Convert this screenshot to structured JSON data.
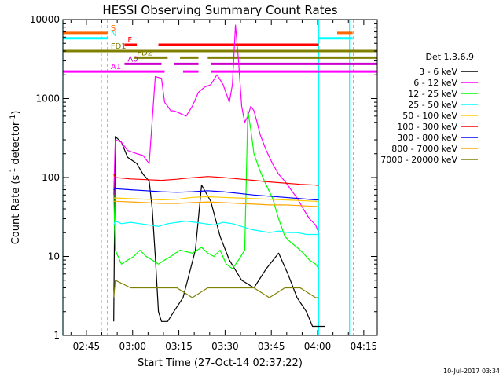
{
  "chart_data": {
    "type": "line",
    "title": "HESSI Observing Summary Count Rates",
    "xlabel": "Start Time (27-Oct-14 02:37:22)",
    "ylabel": "Count Rate (s^-1 detector^-1)",
    "ylabel_parts": {
      "main": "Count Rate (s",
      "sup1": "-1",
      "mid": " detector",
      "sup2": "-1",
      "end": ")"
    },
    "x_units": "minutes since 02:37:22",
    "xlim": [
      0,
      102
    ],
    "ylim": [
      1,
      10000
    ],
    "yscale": "log",
    "x_ticks": [
      {
        "value": 7.63,
        "label": "02:45"
      },
      {
        "value": 22.63,
        "label": "03:00"
      },
      {
        "value": 37.63,
        "label": "03:15"
      },
      {
        "value": 52.63,
        "label": "03:30"
      },
      {
        "value": 67.63,
        "label": "03:45"
      },
      {
        "value": 82.63,
        "label": "04:00"
      },
      {
        "value": 97.63,
        "label": "04:15"
      }
    ],
    "y_ticks": [
      {
        "value": 1,
        "label": "1"
      },
      {
        "value": 10,
        "label": "10"
      },
      {
        "value": 100,
        "label": "100"
      },
      {
        "value": 1000,
        "label": "1000"
      },
      {
        "value": 10000,
        "label": "10000"
      }
    ],
    "legend_title": "Det 1,3,6,9",
    "legend_position": "right",
    "series": [
      {
        "name": "3 - 6 keV",
        "color": "#000000",
        "points": [
          [
            16.5,
            1.5
          ],
          [
            17,
            330
          ],
          [
            19,
            280
          ],
          [
            21,
            180
          ],
          [
            24,
            150
          ],
          [
            26,
            110
          ],
          [
            28,
            90
          ],
          [
            29,
            40
          ],
          [
            30,
            10
          ],
          [
            31,
            2
          ],
          [
            32,
            1.5
          ],
          [
            34,
            1.5
          ],
          [
            36,
            2
          ],
          [
            39,
            3
          ],
          [
            43,
            12
          ],
          [
            45,
            80
          ],
          [
            48,
            50
          ],
          [
            51,
            18
          ],
          [
            54,
            9
          ],
          [
            58,
            5
          ],
          [
            62,
            4
          ],
          [
            66,
            7
          ],
          [
            70,
            11
          ],
          [
            73,
            6
          ],
          [
            76,
            3
          ],
          [
            79,
            2
          ],
          [
            81,
            1.3
          ],
          [
            85,
            1.3
          ]
        ]
      },
      {
        "name": "6 - 12 keV",
        "color": "#ff00ff",
        "points": [
          [
            16.5,
            60
          ],
          [
            17,
            300
          ],
          [
            19,
            280
          ],
          [
            21,
            220
          ],
          [
            24,
            200
          ],
          [
            26,
            190
          ],
          [
            28,
            150
          ],
          [
            30,
            1900
          ],
          [
            32,
            1800
          ],
          [
            33,
            900
          ],
          [
            34,
            800
          ],
          [
            35,
            700
          ],
          [
            36,
            700
          ],
          [
            38,
            650
          ],
          [
            40,
            600
          ],
          [
            42,
            800
          ],
          [
            44,
            1200
          ],
          [
            46,
            1400
          ],
          [
            48,
            1500
          ],
          [
            50,
            2000
          ],
          [
            52,
            1500
          ],
          [
            54,
            900
          ],
          [
            55,
            1500
          ],
          [
            56,
            8500
          ],
          [
            57,
            3000
          ],
          [
            58,
            800
          ],
          [
            59,
            500
          ],
          [
            60,
            600
          ],
          [
            61,
            800
          ],
          [
            62,
            700
          ],
          [
            63,
            500
          ],
          [
            64,
            350
          ],
          [
            66,
            220
          ],
          [
            68,
            150
          ],
          [
            70,
            110
          ],
          [
            72,
            90
          ],
          [
            74,
            70
          ],
          [
            76,
            55
          ],
          [
            78,
            40
          ],
          [
            80,
            30
          ],
          [
            82,
            25
          ],
          [
            83,
            20
          ]
        ]
      },
      {
        "name": "12 - 25 keV",
        "color": "#00ff00",
        "points": [
          [
            16.5,
            60
          ],
          [
            17,
            12
          ],
          [
            19,
            8
          ],
          [
            21,
            9
          ],
          [
            23,
            10
          ],
          [
            25,
            12
          ],
          [
            27,
            10
          ],
          [
            29,
            9
          ],
          [
            31,
            8
          ],
          [
            33,
            9
          ],
          [
            35,
            10
          ],
          [
            38,
            12
          ],
          [
            42,
            11
          ],
          [
            45,
            13
          ],
          [
            47,
            11
          ],
          [
            49,
            10
          ],
          [
            51,
            12
          ],
          [
            53,
            8
          ],
          [
            55,
            7
          ],
          [
            57,
            9
          ],
          [
            59,
            12
          ],
          [
            60,
            700
          ],
          [
            61,
            400
          ],
          [
            62,
            200
          ],
          [
            64,
            120
          ],
          [
            66,
            80
          ],
          [
            68,
            55
          ],
          [
            70,
            30
          ],
          [
            72,
            18
          ],
          [
            74,
            15
          ],
          [
            76,
            13
          ],
          [
            78,
            11
          ],
          [
            80,
            9
          ],
          [
            82,
            8
          ],
          [
            83,
            7
          ]
        ]
      },
      {
        "name": "25 - 50 keV",
        "color": "#00ffff",
        "points": [
          [
            16.5,
            25
          ],
          [
            17,
            28
          ],
          [
            19,
            26
          ],
          [
            22,
            27
          ],
          [
            25,
            26
          ],
          [
            28,
            25
          ],
          [
            31,
            24
          ],
          [
            34,
            26
          ],
          [
            37,
            27
          ],
          [
            40,
            28
          ],
          [
            43,
            27
          ],
          [
            46,
            26
          ],
          [
            49,
            25
          ],
          [
            52,
            27
          ],
          [
            55,
            26
          ],
          [
            58,
            24
          ],
          [
            61,
            22
          ],
          [
            64,
            21
          ],
          [
            67,
            20
          ],
          [
            70,
            21
          ],
          [
            73,
            20
          ],
          [
            76,
            20
          ],
          [
            79,
            19
          ],
          [
            82,
            19
          ],
          [
            83,
            19
          ]
        ]
      },
      {
        "name": "50 - 100 keV",
        "color": "#ffcc00",
        "points": [
          [
            16.5,
            55
          ],
          [
            17,
            55
          ],
          [
            22,
            54
          ],
          [
            27,
            53
          ],
          [
            32,
            52
          ],
          [
            37,
            53
          ],
          [
            42,
            56
          ],
          [
            47,
            57
          ],
          [
            52,
            56
          ],
          [
            57,
            55
          ],
          [
            62,
            54
          ],
          [
            67,
            53
          ],
          [
            72,
            52
          ],
          [
            77,
            51
          ],
          [
            82,
            50
          ],
          [
            83,
            49
          ]
        ]
      },
      {
        "name": "100 - 300 keV",
        "color": "#ff0000",
        "points": [
          [
            16.5,
            110
          ],
          [
            17,
            100
          ],
          [
            22,
            96
          ],
          [
            27,
            94
          ],
          [
            32,
            92
          ],
          [
            37,
            95
          ],
          [
            40,
            98
          ],
          [
            43,
            100
          ],
          [
            47,
            103
          ],
          [
            52,
            100
          ],
          [
            57,
            96
          ],
          [
            62,
            92
          ],
          [
            67,
            88
          ],
          [
            72,
            85
          ],
          [
            77,
            82
          ],
          [
            82,
            80
          ],
          [
            83,
            79
          ]
        ]
      },
      {
        "name": "300 - 800 keV",
        "color": "#0000ff",
        "points": [
          [
            16.5,
            70
          ],
          [
            17,
            72
          ],
          [
            22,
            70
          ],
          [
            27,
            68
          ],
          [
            32,
            66
          ],
          [
            37,
            65
          ],
          [
            42,
            66
          ],
          [
            47,
            68
          ],
          [
            52,
            66
          ],
          [
            57,
            63
          ],
          [
            62,
            60
          ],
          [
            67,
            58
          ],
          [
            72,
            56
          ],
          [
            77,
            54
          ],
          [
            82,
            52
          ],
          [
            83,
            52
          ]
        ]
      },
      {
        "name": "800 - 7000 keV",
        "color": "#ffa500",
        "points": [
          [
            16.5,
            50
          ],
          [
            17,
            50
          ],
          [
            22,
            49
          ],
          [
            27,
            48
          ],
          [
            32,
            47
          ],
          [
            37,
            47
          ],
          [
            42,
            48
          ],
          [
            47,
            49
          ],
          [
            52,
            48
          ],
          [
            57,
            47
          ],
          [
            62,
            46
          ],
          [
            67,
            45
          ],
          [
            72,
            45
          ],
          [
            77,
            44
          ],
          [
            82,
            43
          ],
          [
            83,
            43
          ]
        ]
      },
      {
        "name": "7000 - 20000 keV",
        "color": "#808000",
        "points": [
          [
            16.5,
            3
          ],
          [
            17,
            5
          ],
          [
            22,
            4
          ],
          [
            27,
            4
          ],
          [
            32,
            4
          ],
          [
            37,
            4
          ],
          [
            42,
            3
          ],
          [
            47,
            4
          ],
          [
            52,
            4
          ],
          [
            57,
            4
          ],
          [
            62,
            4
          ],
          [
            67,
            3
          ],
          [
            72,
            4
          ],
          [
            77,
            4
          ],
          [
            82,
            3
          ],
          [
            83,
            3
          ]
        ]
      }
    ],
    "annotation_bars": [
      {
        "label": "S",
        "color": "#ff6600",
        "y": 6800,
        "segments": [
          [
            0,
            14.5
          ],
          [
            89,
            94
          ]
        ]
      },
      {
        "label": "N",
        "color": "#00ffff",
        "y": 5800,
        "segments": [
          [
            0,
            14.5
          ],
          [
            83,
            94
          ]
        ]
      },
      {
        "label": "F",
        "color": "#ff0000",
        "y": 4800,
        "segments": [
          [
            20,
            24
          ],
          [
            31,
            83
          ]
        ]
      },
      {
        "label": "FD1",
        "color": "#808000",
        "y": 4000,
        "segments": [
          [
            0,
            102
          ]
        ]
      },
      {
        "label": "FD2",
        "color": "#808000",
        "y": 3300,
        "segments": [
          [
            23,
            34
          ],
          [
            38,
            44
          ],
          [
            47,
            102
          ]
        ]
      },
      {
        "label": "A0",
        "color": "#cc00cc",
        "y": 2750,
        "segments": [
          [
            20,
            32
          ],
          [
            36,
            44
          ],
          [
            48,
            102
          ]
        ]
      },
      {
        "label": "A1",
        "color": "#ff00ff",
        "y": 2200,
        "segments": [
          [
            0,
            33
          ],
          [
            39,
            44
          ],
          [
            48,
            102
          ]
        ]
      }
    ],
    "vlines": [
      {
        "x": 0,
        "color": "#00ffff",
        "style": "solid"
      },
      {
        "x": 12.5,
        "color": "#00ffff",
        "style": "dashed"
      },
      {
        "x": 14.5,
        "color": "#ff8c00",
        "style": "dashed"
      },
      {
        "x": 83,
        "color": "#00ffff",
        "style": "solid"
      },
      {
        "x": 93,
        "color": "#00ffff",
        "style": "solid"
      },
      {
        "x": 94.3,
        "color": "#ff8c00",
        "style": "dashed"
      }
    ]
  },
  "footer": {
    "date_stamp": "10-Jul-2017 03:34"
  }
}
